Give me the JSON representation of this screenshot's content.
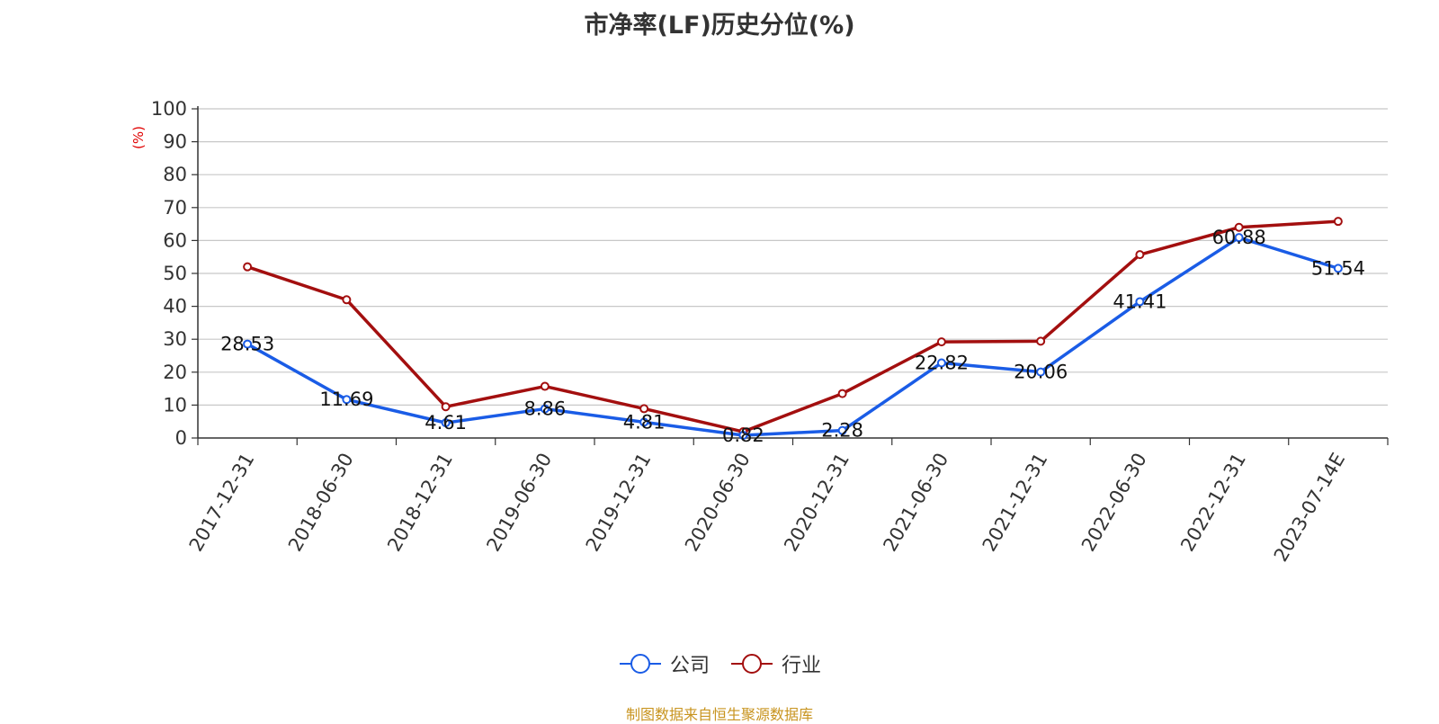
{
  "chart_data": {
    "type": "line",
    "title": "市净率(LF)历史分位(%)",
    "ylabel": "(%)",
    "ylim": [
      0,
      100
    ],
    "yticks": [
      "0",
      "10",
      "20",
      "30",
      "40",
      "50",
      "60",
      "70",
      "80",
      "90",
      "100"
    ],
    "categories": [
      "2017-12-31",
      "2018-06-30",
      "2018-12-31",
      "2019-06-30",
      "2019-12-31",
      "2020-06-30",
      "2020-12-31",
      "2021-06-30",
      "2021-12-31",
      "2022-06-30",
      "2022-12-31",
      "2023-07-14E"
    ],
    "series": [
      {
        "name": "公司",
        "color": "#1a5ce6",
        "values": [
          28.53,
          11.69,
          4.61,
          8.86,
          4.81,
          0.82,
          2.28,
          22.82,
          20.06,
          41.41,
          60.88,
          51.54
        ],
        "labels": [
          "28.53",
          "11.69",
          "4.61",
          "8.86",
          "4.81",
          "0.82",
          "2.28",
          "22.82",
          "20.06",
          "41.41",
          "60.88",
          "51.54"
        ]
      },
      {
        "name": "行业",
        "color": "#a30f0f",
        "values": [
          52.0,
          42.0,
          9.5,
          15.7,
          8.9,
          1.9,
          13.5,
          29.2,
          29.4,
          55.7,
          64.0,
          65.8
        ]
      }
    ],
    "grid": true,
    "legend_position": "bottom-center"
  },
  "source": "制图数据来自恒生聚源数据库"
}
